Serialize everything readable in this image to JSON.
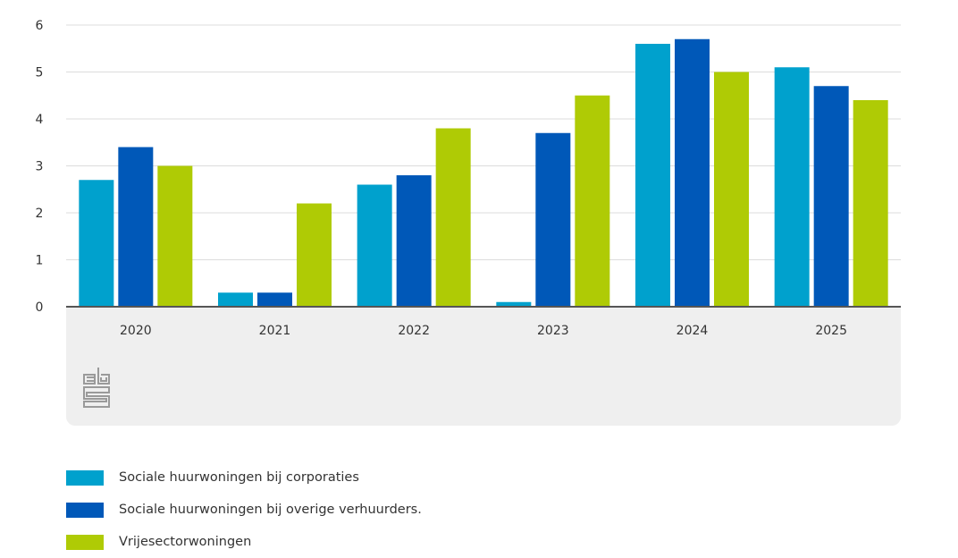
{
  "chart_data": {
    "type": "bar",
    "categories": [
      "2020",
      "2021",
      "2022",
      "2023",
      "2024",
      "2025"
    ],
    "series": [
      {
        "name": "Sociale huurwoningen bij corporaties",
        "color": "#00a1cd",
        "values": [
          2.7,
          0.3,
          2.6,
          0.1,
          5.6,
          5.1
        ]
      },
      {
        "name": "Sociale huurwoningen bij overige verhuurders.",
        "color": "#0058b8",
        "values": [
          3.4,
          0.3,
          2.8,
          3.7,
          5.7,
          4.7
        ]
      },
      {
        "name": "Vrijesectorwoningen",
        "color": "#afcb05",
        "values": [
          3.0,
          2.2,
          3.8,
          4.5,
          5.0,
          4.4
        ]
      }
    ],
    "yticks": [
      "0",
      "1",
      "2",
      "3",
      "4",
      "5",
      "6"
    ],
    "ylim": [
      0,
      6
    ],
    "grid": true,
    "legend_placement": "bottom"
  },
  "logo_text": "cbs"
}
